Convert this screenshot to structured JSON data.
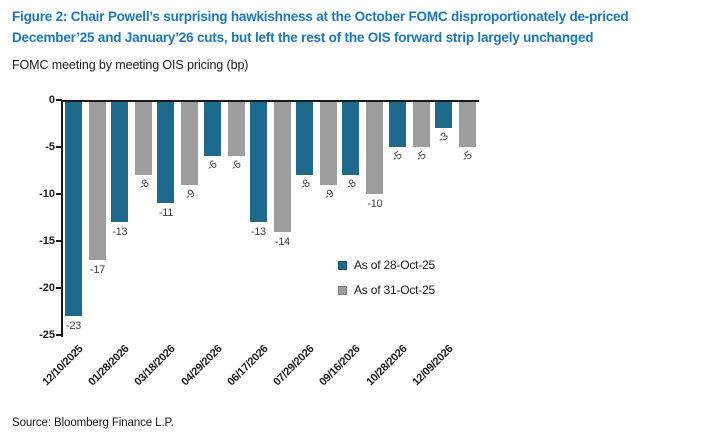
{
  "header": {
    "title_lines": [
      "Figure 2: Chair Powell’s surprising hawkishness at the October FOMC disproportionately de-priced",
      "December’25 and January’26 cuts, but left the rest of the OIS forward strip largely unchanged"
    ],
    "subtitle": "FOMC meeting by meeting OIS pricing (bp)"
  },
  "footer": {
    "source": "Source: Bloomberg Finance L.P."
  },
  "colors": {
    "title_blue": "#1977C5",
    "series1_teal": "#1E6A8C",
    "series2_gray": "#9E9E9E",
    "axis_black": "#1a1a1a"
  },
  "chart_data": {
    "type": "bar",
    "title": "FOMC meeting by meeting OIS pricing (bp)",
    "categories": [
      "12/10/2025",
      "01/28/2026",
      "03/18/2026",
      "04/29/2026",
      "06/17/2026",
      "07/29/2026",
      "09/16/2026",
      "10/28/2026",
      "12/09/2026"
    ],
    "series": [
      {
        "name": "As of 28-Oct-25",
        "color": "#1E6A8C",
        "values": [
          -23,
          -13,
          -11,
          -6,
          -13,
          -8,
          -8,
          -5,
          -3
        ]
      },
      {
        "name": "As of 31-Oct-25",
        "color": "#9E9E9E",
        "values": [
          -17,
          -8,
          -9,
          -6,
          -14,
          -9,
          -10,
          -5,
          -5
        ]
      }
    ],
    "xlabel": "",
    "ylabel": "",
    "ylim": [
      -25,
      0
    ],
    "yticks": [
      0,
      -5,
      -10,
      -15,
      -20,
      -25
    ],
    "grid": false,
    "legend_position": "inside-right",
    "data_labels": true,
    "label_rotations": [
      [
        0,
        0
      ],
      [
        0,
        -35
      ],
      [
        0,
        -35
      ],
      [
        -35,
        -35
      ],
      [
        0,
        0
      ],
      [
        -35,
        -35
      ],
      [
        -35,
        0
      ],
      [
        -35,
        -35
      ],
      [
        -35,
        -35
      ]
    ]
  }
}
